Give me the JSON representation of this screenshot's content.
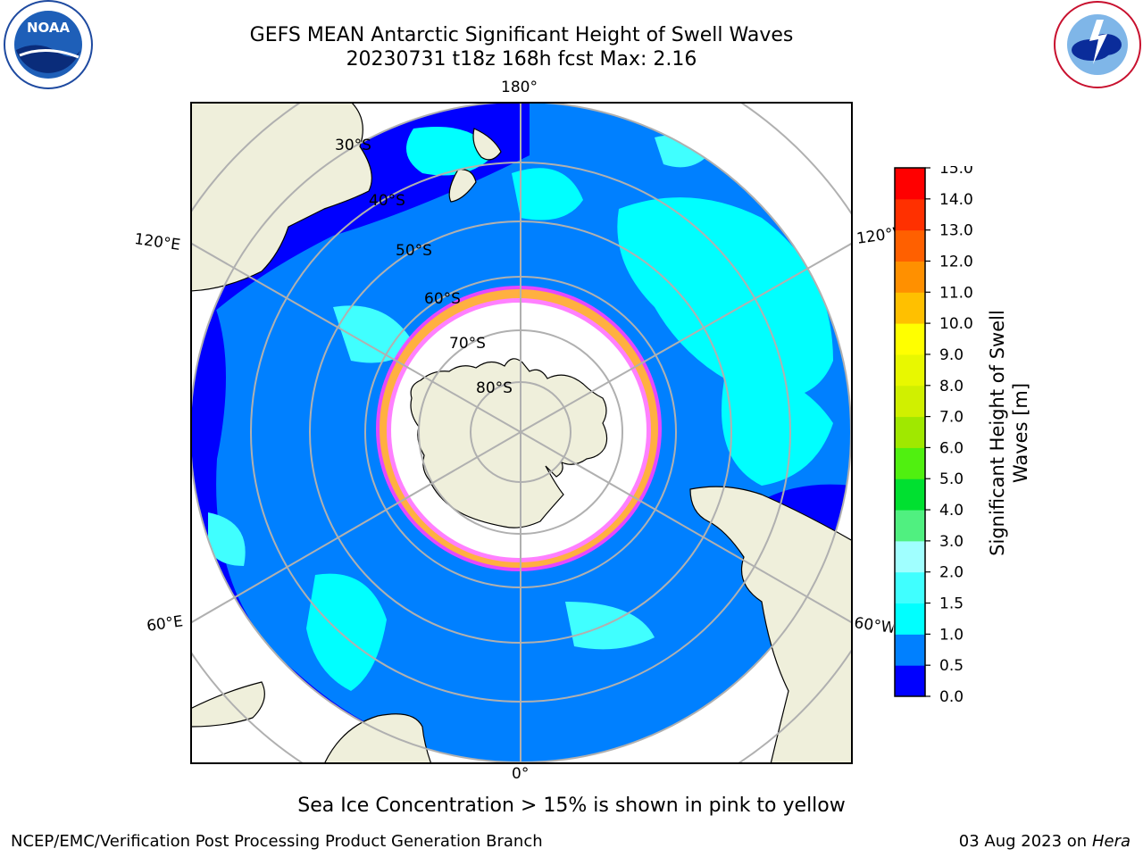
{
  "header": {
    "title_line1": "GEFS MEAN Antarctic Significant Height of Swell Waves",
    "title_line2": "20230731 t18z 168h fcst   Max: 2.16"
  },
  "logos": {
    "left": {
      "icon": "noaa-logo",
      "text": "NOAA",
      "ring_text": "NATIONAL OCEANIC AND ATMOSPHERIC ADMINISTRATION · U.S. DEPARTMENT OF COMMERCE"
    },
    "right": {
      "icon": "nws-logo",
      "ring_text": "NATIONAL WEATHER SERVICE"
    }
  },
  "map": {
    "projection": "south-polar-stereographic",
    "longitude_labels": [
      "180°",
      "120°E",
      "120°W",
      "60°E",
      "60°W",
      "0°"
    ],
    "latitude_labels": [
      "30°S",
      "40°S",
      "50°S",
      "60°S",
      "70°S",
      "80°S"
    ]
  },
  "colorbar": {
    "title": "Significant Height of Swell Waves [m]",
    "ticks": [
      "0.0",
      "0.5",
      "1.0",
      "1.5",
      "2.0",
      "3.0",
      "4.0",
      "5.0",
      "6.0",
      "7.0",
      "8.0",
      "9.0",
      "10.0",
      "11.0",
      "12.0",
      "13.0",
      "14.0",
      "15.0"
    ],
    "colors": [
      "#0000ff",
      "#0080ff",
      "#00ffff",
      "#40ffff",
      "#a0ffff",
      "#50f080",
      "#00e030",
      "#50f010",
      "#a0e800",
      "#d0f000",
      "#e8f800",
      "#ffff00",
      "#ffc000",
      "#ff9000",
      "#ff6000",
      "#ff3000",
      "#ff0000"
    ]
  },
  "footer": {
    "note": "Sea Ice Concentration > 15% is shown in pink to yellow",
    "credit": "NCEP/EMC/Verification Post Processing Product Generation Branch",
    "date": "03 Aug 2023 on",
    "host": "Hera"
  }
}
